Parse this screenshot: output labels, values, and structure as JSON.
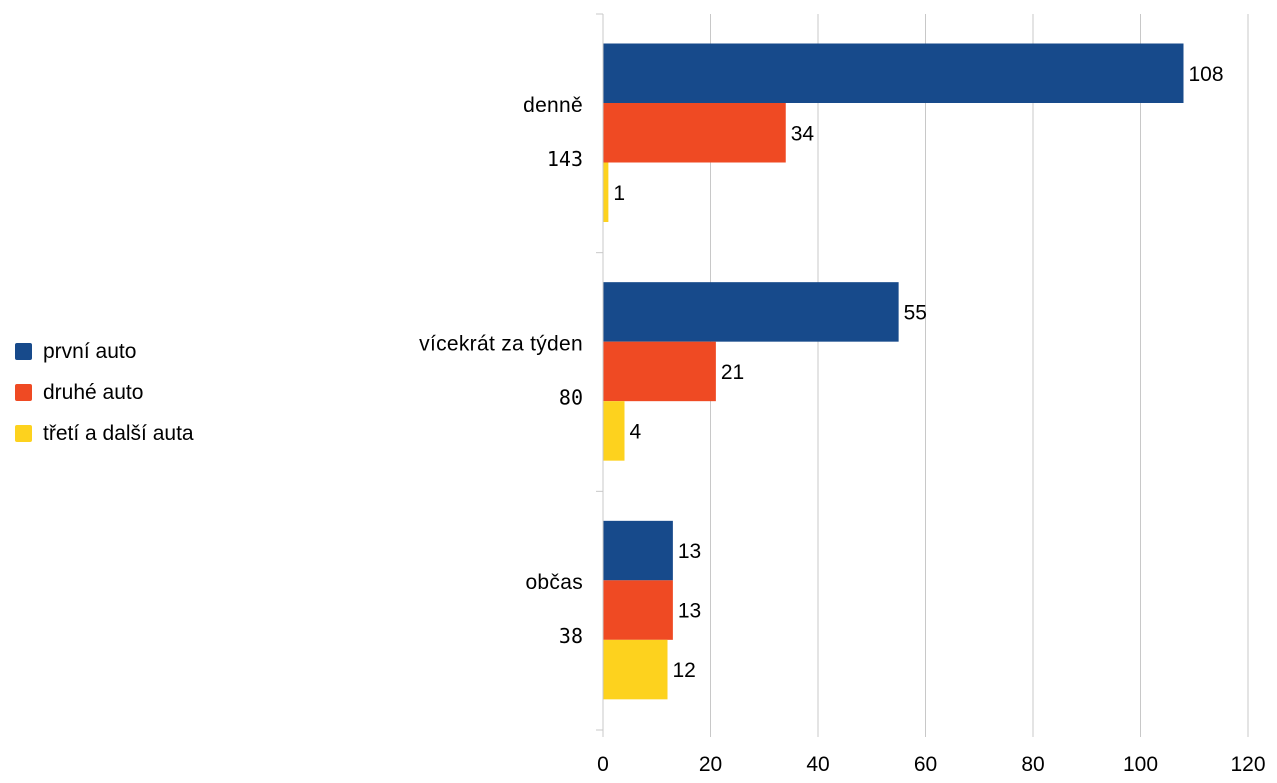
{
  "chart_data": {
    "type": "bar",
    "orientation": "horizontal",
    "categories": [
      "denně",
      "vícekrát za týden",
      "občas"
    ],
    "category_totals": [
      "143",
      "80",
      "38"
    ],
    "series": [
      {
        "name": "první auto",
        "values": [
          108,
          55,
          13
        ],
        "color": "#174a8b"
      },
      {
        "name": "druhé auto",
        "values": [
          34,
          21,
          13
        ],
        "color": "#ef4a23"
      },
      {
        "name": "třetí a další auta",
        "values": [
          1,
          4,
          12
        ],
        "color": "#fdd21e"
      }
    ],
    "xlim": [
      0,
      120
    ],
    "xticks": [
      0,
      20,
      40,
      60,
      80,
      100,
      120
    ],
    "grid": "vertical",
    "legend": "left",
    "data_labels": true
  }
}
